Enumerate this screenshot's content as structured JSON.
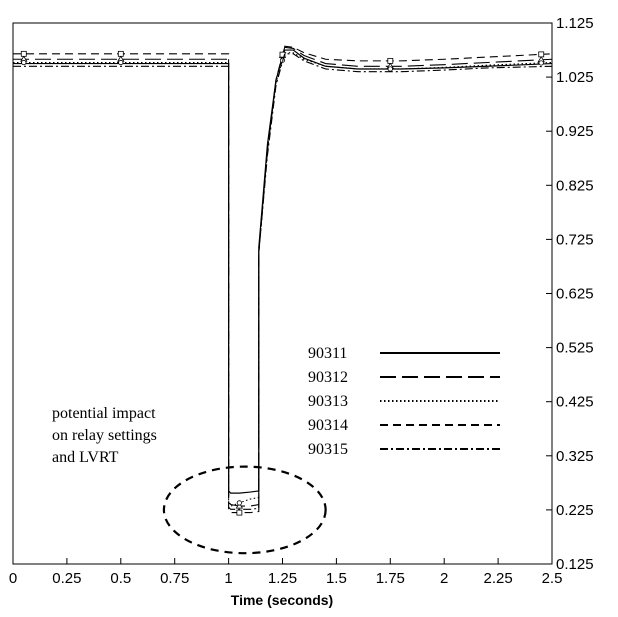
{
  "chart_data": {
    "type": "line",
    "title": "",
    "xlabel": "Time (seconds)",
    "ylabel": "",
    "xlim": [
      0,
      2.5
    ],
    "ylim": [
      0.125,
      1.125
    ],
    "x_ticks": [
      "0",
      "0.25",
      "0.5",
      "0.75",
      "1",
      "1.25",
      "1.5",
      "1.75",
      "2",
      "2.25",
      "2.5"
    ],
    "y_ticks": [
      "0.125",
      "0.225",
      "0.325",
      "0.425",
      "0.525",
      "0.625",
      "0.725",
      "0.825",
      "0.925",
      "1.025",
      "1.125"
    ],
    "y_axis_side": "right",
    "grid": false,
    "legend": {
      "placement": "lower-right"
    },
    "series": [
      {
        "name": "90311",
        "dash": "solid",
        "x": [
          0,
          1.0,
          1.0,
          1.01,
          1.05,
          1.1,
          1.14,
          1.14,
          1.18,
          1.22,
          1.26,
          1.3,
          1.35,
          1.45,
          1.6,
          1.8,
          2.0,
          2.2,
          2.5
        ],
        "y": [
          1.05,
          1.05,
          0.26,
          0.256,
          0.256,
          0.258,
          0.26,
          0.71,
          0.9,
          1.02,
          1.075,
          1.075,
          1.06,
          1.045,
          1.04,
          1.04,
          1.042,
          1.045,
          1.05
        ]
      },
      {
        "name": "90312",
        "dash": "long-dash",
        "x": [
          0,
          1.0,
          1.0,
          1.01,
          1.05,
          1.1,
          1.14,
          1.14,
          1.18,
          1.22,
          1.26,
          1.3,
          1.35,
          1.45,
          1.6,
          1.8,
          2.0,
          2.2,
          2.5
        ],
        "y": [
          1.058,
          1.058,
          0.24,
          0.235,
          0.232,
          0.232,
          0.235,
          0.7,
          0.89,
          1.02,
          1.08,
          1.078,
          1.065,
          1.05,
          1.045,
          1.045,
          1.048,
          1.052,
          1.058
        ]
      },
      {
        "name": "90313",
        "dash": "dotted",
        "x": [
          0,
          1.0,
          1.0,
          1.01,
          1.05,
          1.1,
          1.14,
          1.14,
          1.18,
          1.22,
          1.26,
          1.3,
          1.35,
          1.45,
          1.6,
          1.8,
          2.0,
          2.2,
          2.5
        ],
        "y": [
          1.052,
          1.052,
          0.24,
          0.232,
          0.238,
          0.245,
          0.248,
          0.7,
          0.89,
          1.015,
          1.07,
          1.07,
          1.058,
          1.045,
          1.04,
          1.04,
          1.043,
          1.047,
          1.052
        ]
      },
      {
        "name": "90314",
        "dash": "dash",
        "x": [
          0,
          1.0,
          1.0,
          1.01,
          1.05,
          1.1,
          1.14,
          1.14,
          1.18,
          1.22,
          1.26,
          1.3,
          1.35,
          1.45,
          1.6,
          1.8,
          2.0,
          2.2,
          2.5
        ],
        "y": [
          1.068,
          1.068,
          0.225,
          0.22,
          0.22,
          0.22,
          0.222,
          0.7,
          0.89,
          1.02,
          1.082,
          1.08,
          1.07,
          1.058,
          1.055,
          1.055,
          1.058,
          1.062,
          1.068
        ]
      },
      {
        "name": "90315",
        "dash": "dash-dot",
        "x": [
          0,
          1.0,
          1.0,
          1.01,
          1.05,
          1.1,
          1.14,
          1.14,
          1.18,
          1.22,
          1.26,
          1.3,
          1.35,
          1.45,
          1.6,
          1.8,
          2.0,
          2.2,
          2.5
        ],
        "y": [
          1.045,
          1.045,
          0.23,
          0.226,
          0.226,
          0.226,
          0.228,
          0.7,
          0.88,
          1.01,
          1.068,
          1.068,
          1.055,
          1.04,
          1.035,
          1.035,
          1.038,
          1.042,
          1.045
        ]
      }
    ],
    "annotation": {
      "lines": [
        "potential impact",
        "on relay settings",
        "and LVRT"
      ],
      "ellipse_center": [
        1.075,
        0.225
      ],
      "ellipse_radius": [
        0.375,
        0.08
      ]
    }
  }
}
